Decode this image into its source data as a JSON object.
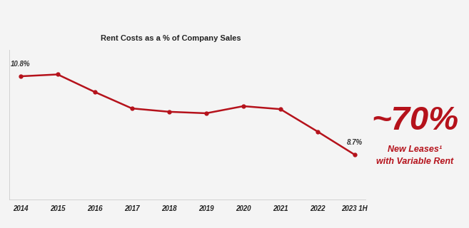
{
  "chart_data": {
    "type": "line",
    "title": "Rent Costs as a % of Company Sales",
    "categories": [
      "2014",
      "2015",
      "2016",
      "2017",
      "2018",
      "2019",
      "2020",
      "2021",
      "2022",
      "2023 1H"
    ],
    "values": [
      10.8,
      10.85,
      10.38,
      9.94,
      9.85,
      9.81,
      10.0,
      9.92,
      9.32,
      8.7
    ],
    "value_labels": [
      "10.8%",
      null,
      null,
      null,
      null,
      null,
      null,
      null,
      null,
      "8.7%"
    ],
    "data_labels": true,
    "ylim": [
      7.5,
      11.5
    ],
    "yticks": [],
    "tick_labels": "x",
    "grid": false,
    "color": "#b5121b",
    "marker": "o",
    "line_style": "solid",
    "annotations": [
      "~70%",
      "New Leases¹",
      "with Variable Rent"
    ]
  }
}
